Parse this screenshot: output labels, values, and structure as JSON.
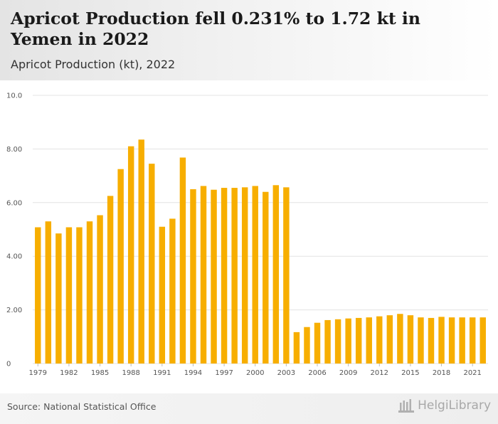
{
  "header": {
    "title": "Apricot Production fell 0.231% to 1.72 kt in Yemen in 2022",
    "subtitle": "Apricot Production (kt), 2022"
  },
  "footer": {
    "source": "Source: National Statistical Office",
    "logo_text": "HelgiLibrary"
  },
  "colors": {
    "bar": "#f7ae00",
    "grid": "#e3e3e3",
    "axis_text": "#555555"
  },
  "chart_data": {
    "type": "bar",
    "title": "Apricot Production (kt), 2022",
    "xlabel": "",
    "ylabel": "",
    "ylim": [
      0,
      10
    ],
    "grid": true,
    "y_ticks": [
      "0",
      "2.00",
      "4.00",
      "6.00",
      "8.00",
      "10.0"
    ],
    "x_tick_labels": [
      "1979",
      "1982",
      "1985",
      "1988",
      "1991",
      "1994",
      "1997",
      "2000",
      "2003",
      "2006",
      "2009",
      "2012",
      "2015",
      "2018",
      "2021"
    ],
    "categories": [
      "1979",
      "1980",
      "1981",
      "1982",
      "1983",
      "1984",
      "1985",
      "1986",
      "1987",
      "1988",
      "1989",
      "1990",
      "1991",
      "1992",
      "1993",
      "1994",
      "1995",
      "1996",
      "1997",
      "1998",
      "1999",
      "2000",
      "2001",
      "2002",
      "2003",
      "2004",
      "2005",
      "2006",
      "2007",
      "2008",
      "2009",
      "2010",
      "2011",
      "2012",
      "2013",
      "2014",
      "2015",
      "2016",
      "2017",
      "2018",
      "2019",
      "2020",
      "2021",
      "2022"
    ],
    "values": [
      5.08,
      5.3,
      4.85,
      5.08,
      5.08,
      5.3,
      5.53,
      6.25,
      7.25,
      8.1,
      8.35,
      7.45,
      5.1,
      5.4,
      7.68,
      6.5,
      6.62,
      6.48,
      6.55,
      6.55,
      6.57,
      6.62,
      6.4,
      6.65,
      6.57,
      1.17,
      1.36,
      1.52,
      1.62,
      1.65,
      1.68,
      1.7,
      1.72,
      1.76,
      1.8,
      1.85,
      1.8,
      1.72,
      1.7,
      1.74,
      1.72,
      1.72,
      1.72,
      1.72
    ]
  }
}
